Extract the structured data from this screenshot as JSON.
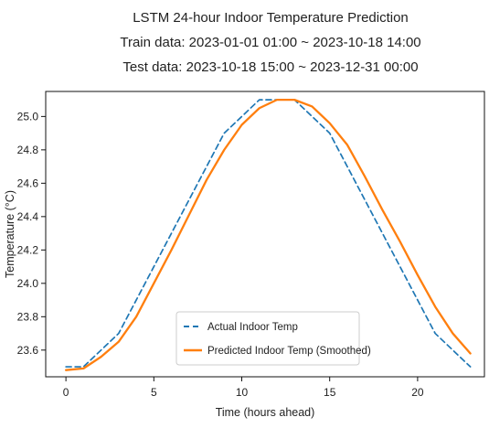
{
  "chart_data": {
    "type": "line",
    "title_lines": [
      "LSTM 24-hour Indoor Temperature Prediction",
      "Train data: 2023-01-01 01:00 ~ 2023-10-18 14:00",
      "Test data: 2023-10-18 15:00 ~ 2023-12-31 00:00"
    ],
    "xlabel": "Time (hours ahead)",
    "ylabel": "Temperature (°C)",
    "xlim": [
      -1.15,
      23.8
    ],
    "ylim": [
      23.44,
      25.15
    ],
    "x_ticks": [
      0,
      5,
      10,
      15,
      20
    ],
    "y_ticks": [
      23.6,
      23.8,
      24.0,
      24.2,
      24.4,
      24.6,
      24.8,
      25.0
    ],
    "y_tick_decimals": 1,
    "grid": false,
    "legend_position": "lower-center",
    "series": [
      {
        "name": "Actual Indoor Temp",
        "color": "#1f77b4",
        "line_style": "dashed",
        "x": [
          0,
          1,
          2,
          3,
          4,
          5,
          6,
          7,
          8,
          9,
          10,
          11,
          12,
          13,
          14,
          15,
          16,
          17,
          18,
          19,
          20,
          21,
          22,
          23
        ],
        "values": [
          23.5,
          23.5,
          23.6,
          23.7,
          23.9,
          24.1,
          24.3,
          24.5,
          24.7,
          24.9,
          25.0,
          25.1,
          25.1,
          25.1,
          25.0,
          24.9,
          24.7,
          24.5,
          24.3,
          24.1,
          23.9,
          23.7,
          23.6,
          23.5
        ]
      },
      {
        "name": "Predicted Indoor Temp (Smoothed)",
        "color": "#ff7f0e",
        "line_style": "solid",
        "x": [
          0,
          1,
          2,
          3,
          4,
          5,
          6,
          7,
          8,
          9,
          10,
          11,
          12,
          13,
          14,
          15,
          16,
          17,
          18,
          19,
          20,
          21,
          22,
          23
        ],
        "values": [
          23.48,
          23.49,
          23.56,
          23.65,
          23.8,
          24.0,
          24.2,
          24.41,
          24.62,
          24.8,
          24.95,
          25.05,
          25.1,
          25.1,
          25.06,
          24.96,
          24.83,
          24.64,
          24.44,
          24.25,
          24.05,
          23.86,
          23.7,
          23.58
        ]
      }
    ]
  }
}
